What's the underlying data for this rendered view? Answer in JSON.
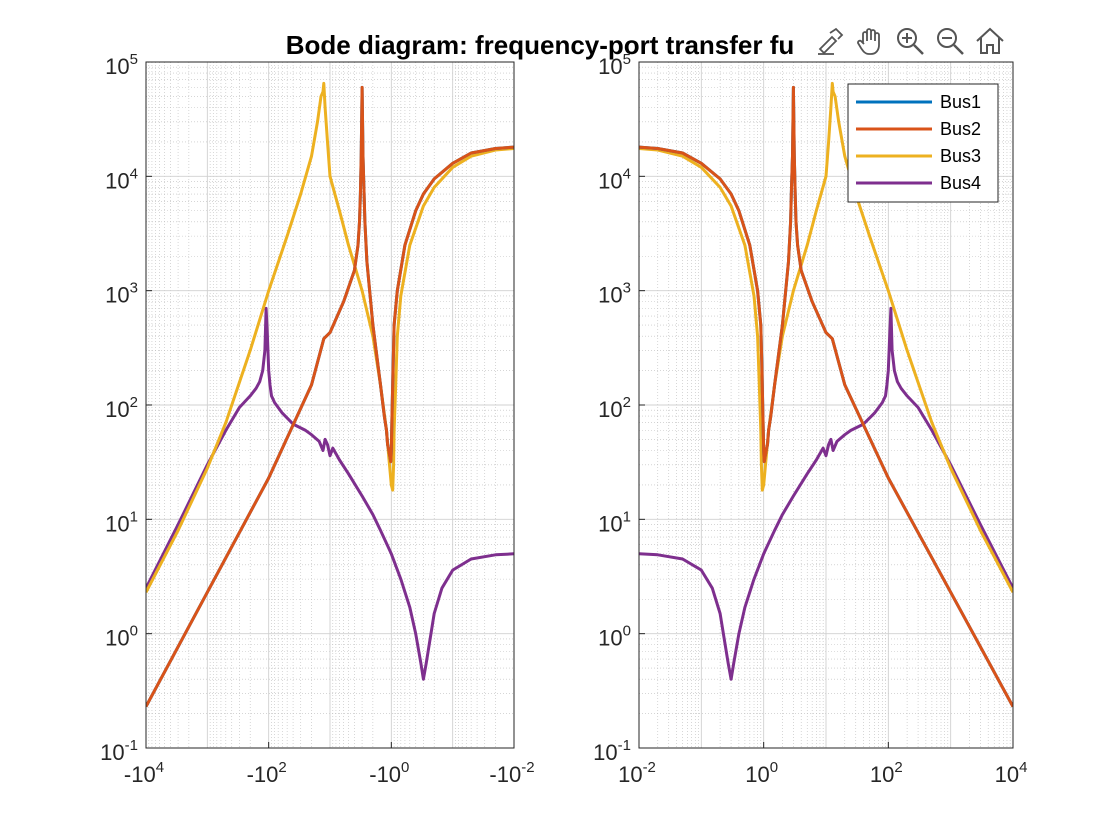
{
  "toolbar": {
    "icons": [
      "export-icon",
      "pan-icon",
      "zoom-in-icon",
      "zoom-out-icon",
      "home-icon"
    ]
  },
  "chart_data": {
    "type": "line",
    "title": "Bode diagram: frequency-port transfer fu",
    "yscale": "log",
    "grid": true,
    "legend_position": "top-right",
    "colors": {
      "Bus1": "#0072BD",
      "Bus2": "#D95319",
      "Bus3": "#EDB120",
      "Bus4": "#7E2F8E"
    },
    "legend": [
      "Bus1",
      "Bus2",
      "Bus3",
      "Bus4"
    ],
    "panels": [
      {
        "name": "left",
        "xscale": "log-negative",
        "xlim": [
          -10000,
          -0.01
        ],
        "ylim": [
          0.1,
          100000
        ],
        "xticks": [
          {
            "base": "-10",
            "exp": "4"
          },
          {
            "base": "-10",
            "exp": "2"
          },
          {
            "base": "-10",
            "exp": "0"
          },
          {
            "base": "-10",
            "exp": "-2"
          }
        ],
        "yticks": [
          {
            "base": "10",
            "exp": "-1"
          },
          {
            "base": "10",
            "exp": "0"
          },
          {
            "base": "10",
            "exp": "1"
          },
          {
            "base": "10",
            "exp": "2"
          },
          {
            "base": "10",
            "exp": "3"
          },
          {
            "base": "10",
            "exp": "4"
          },
          {
            "base": "10",
            "exp": "5"
          }
        ],
        "series": [
          {
            "name": "Bus4",
            "x": [
              -10000,
              -3000,
              -1000,
              -500,
              -300,
              -200,
              -160,
              -140,
              -125,
              -115,
              -110,
              -105,
              -100,
              -95,
              -90,
              -80,
              -60,
              -40,
              -25,
              -20,
              -15,
              -13,
              -12,
              -11,
              -10,
              -9,
              -7,
              -5,
              -3,
              -2,
              -1.5,
              -1,
              -0.7,
              -0.5,
              -0.4,
              -0.33,
              -0.3,
              -0.27,
              -0.2,
              -0.15,
              -0.1,
              -0.05,
              -0.02,
              -0.01
            ],
            "y": [
              2.5,
              9,
              30,
              60,
              95,
              120,
              140,
              160,
              200,
              300,
              700,
              400,
              200,
              150,
              120,
              105,
              85,
              68,
              60,
              55,
              48,
              40,
              50,
              45,
              36,
              42,
              33,
              25,
              16,
              11,
              8,
              5,
              3,
              1.7,
              1,
              0.55,
              0.4,
              0.55,
              1.5,
              2.5,
              3.6,
              4.5,
              4.9,
              5
            ]
          },
          {
            "name": "Bus3",
            "x": [
              -10000,
              -3000,
              -1000,
              -500,
              -200,
              -100,
              -50,
              -30,
              -20,
              -16,
              -14,
              -13,
              -12.6,
              -12,
              -11,
              -10,
              -7,
              -5,
              -3,
              -2,
              -1.5,
              -1.2,
              -1.1,
              -1,
              -0.95,
              -0.92,
              -0.9,
              -0.85,
              -0.8,
              -0.7,
              -0.5,
              -0.3,
              -0.2,
              -0.1,
              -0.05,
              -0.02,
              -0.01
            ],
            "y": [
              2.3,
              8,
              28,
              70,
              300,
              1000,
              3000,
              7000,
              15000,
              30000,
              50000,
              55000,
              65000,
              40000,
              20000,
              10000,
              5000,
              2500,
              1000,
              400,
              150,
              60,
              35,
              20,
              18,
              30,
              60,
              150,
              400,
              900,
              2500,
              5500,
              8000,
              12000,
              15000,
              17000,
              17500
            ]
          },
          {
            "name": "Bus1",
            "x": [
              -10000,
              -1000,
              -100,
              -20,
              -12.6,
              -10,
              -6,
              -4,
              -3.5,
              -3.3,
              -3.2,
              -3.1,
              -3,
              -2.9,
              -2.8,
              -2.7,
              -2.5,
              -2,
              -1.5,
              -1.3,
              -1.2,
              -1.15,
              -1.1,
              -1.05,
              -1.02,
              -1,
              -0.97,
              -0.93,
              -0.9,
              -0.8,
              -0.6,
              -0.4,
              -0.3,
              -0.2,
              -0.1,
              -0.05,
              -0.02,
              -0.01
            ],
            "y": [
              0.23,
              2.3,
              23,
              150,
              380,
              430,
              800,
              1500,
              2500,
              4000,
              7000,
              15000,
              60000,
              15000,
              8000,
              4000,
              1800,
              500,
              150,
              80,
              60,
              45,
              40,
              35,
              32,
              40,
              90,
              250,
              500,
              1000,
              2500,
              5000,
              7000,
              9500,
              13000,
              16000,
              17500,
              18000
            ]
          },
          {
            "name": "Bus2",
            "x": [
              -10000,
              -1000,
              -100,
              -20,
              -12.6,
              -10,
              -6,
              -4,
              -3.5,
              -3.3,
              -3.2,
              -3.1,
              -3,
              -2.9,
              -2.8,
              -2.7,
              -2.5,
              -2,
              -1.5,
              -1.3,
              -1.2,
              -1.15,
              -1.1,
              -1.05,
              -1.02,
              -1,
              -0.97,
              -0.93,
              -0.9,
              -0.8,
              -0.6,
              -0.4,
              -0.3,
              -0.2,
              -0.1,
              -0.05,
              -0.02,
              -0.01
            ],
            "y": [
              0.23,
              2.3,
              23,
              150,
              380,
              430,
              800,
              1500,
              2500,
              4000,
              7000,
              15000,
              60000,
              15000,
              8000,
              4000,
              1800,
              500,
              150,
              80,
              60,
              45,
              40,
              35,
              32,
              40,
              90,
              250,
              500,
              1000,
              2500,
              5000,
              7000,
              9500,
              13000,
              16000,
              17500,
              18000
            ]
          }
        ]
      },
      {
        "name": "right",
        "xscale": "log",
        "xlim": [
          0.01,
          10000
        ],
        "ylim": [
          0.1,
          100000
        ],
        "xticks": [
          {
            "base": "10",
            "exp": "-2"
          },
          {
            "base": "10",
            "exp": "0"
          },
          {
            "base": "10",
            "exp": "2"
          },
          {
            "base": "10",
            "exp": "4"
          }
        ],
        "yticks": [
          {
            "base": "10",
            "exp": "-1"
          },
          {
            "base": "10",
            "exp": "0"
          },
          {
            "base": "10",
            "exp": "1"
          },
          {
            "base": "10",
            "exp": "2"
          },
          {
            "base": "10",
            "exp": "3"
          },
          {
            "base": "10",
            "exp": "4"
          },
          {
            "base": "10",
            "exp": "5"
          }
        ],
        "series": [
          {
            "name": "Bus4",
            "x": [
              0.01,
              0.02,
              0.05,
              0.1,
              0.15,
              0.2,
              0.27,
              0.3,
              0.33,
              0.4,
              0.5,
              0.7,
              1,
              1.5,
              2,
              3,
              5,
              7,
              9,
              10,
              11,
              12,
              13,
              15,
              20,
              25,
              40,
              60,
              80,
              90,
              95,
              100,
              105,
              110,
              115,
              125,
              140,
              160,
              200,
              300,
              500,
              1000,
              3000,
              10000
            ],
            "y": [
              5,
              4.9,
              4.5,
              3.6,
              2.5,
              1.5,
              0.55,
              0.4,
              0.55,
              1,
              1.7,
              3,
              5,
              8,
              11,
              16,
              25,
              33,
              42,
              36,
              45,
              50,
              40,
              48,
              55,
              60,
              68,
              85,
              105,
              120,
              150,
              200,
              400,
              700,
              300,
              200,
              160,
              140,
              120,
              95,
              60,
              30,
              9,
              2.5
            ]
          },
          {
            "name": "Bus3",
            "x": [
              0.01,
              0.02,
              0.05,
              0.1,
              0.2,
              0.3,
              0.5,
              0.7,
              0.8,
              0.85,
              0.9,
              0.92,
              0.95,
              1,
              1.1,
              1.2,
              1.5,
              2,
              3,
              5,
              7,
              10,
              11,
              12,
              12.6,
              13,
              14,
              16,
              20,
              30,
              50,
              100,
              200,
              500,
              1000,
              3000,
              10000
            ],
            "y": [
              17500,
              17000,
              15000,
              12000,
              8000,
              5500,
              2500,
              900,
              400,
              150,
              60,
              30,
              18,
              20,
              35,
              60,
              150,
              400,
              1000,
              2500,
              5000,
              10000,
              20000,
              40000,
              65000,
              55000,
              50000,
              30000,
              15000,
              7000,
              3000,
              1000,
              300,
              70,
              28,
              8,
              2.3
            ]
          },
          {
            "name": "Bus1",
            "x": [
              0.01,
              0.02,
              0.05,
              0.1,
              0.2,
              0.3,
              0.4,
              0.6,
              0.8,
              0.9,
              0.93,
              0.97,
              1,
              1.02,
              1.05,
              1.1,
              1.15,
              1.2,
              1.3,
              1.5,
              2,
              2.5,
              2.7,
              2.8,
              2.9,
              3,
              3.1,
              3.2,
              3.3,
              3.5,
              4,
              6,
              10,
              12.6,
              20,
              100,
              1000,
              10000
            ],
            "y": [
              18000,
              17500,
              16000,
              13000,
              9500,
              7000,
              5000,
              2500,
              1000,
              500,
              250,
              90,
              40,
              32,
              35,
              40,
              45,
              60,
              80,
              150,
              500,
              1800,
              4000,
              8000,
              15000,
              60000,
              15000,
              7000,
              4000,
              2500,
              1500,
              800,
              430,
              380,
              150,
              23,
              2.3,
              0.23
            ]
          },
          {
            "name": "Bus2",
            "x": [
              0.01,
              0.02,
              0.05,
              0.1,
              0.2,
              0.3,
              0.4,
              0.6,
              0.8,
              0.9,
              0.93,
              0.97,
              1,
              1.02,
              1.05,
              1.1,
              1.15,
              1.2,
              1.3,
              1.5,
              2,
              2.5,
              2.7,
              2.8,
              2.9,
              3,
              3.1,
              3.2,
              3.3,
              3.5,
              4,
              6,
              10,
              12.6,
              20,
              100,
              1000,
              10000
            ],
            "y": [
              18000,
              17500,
              16000,
              13000,
              9500,
              7000,
              5000,
              2500,
              1000,
              500,
              250,
              90,
              40,
              32,
              35,
              40,
              45,
              60,
              80,
              150,
              500,
              1800,
              4000,
              8000,
              15000,
              60000,
              15000,
              7000,
              4000,
              2500,
              1500,
              800,
              430,
              380,
              150,
              23,
              2.3,
              0.23
            ]
          }
        ]
      }
    ]
  }
}
